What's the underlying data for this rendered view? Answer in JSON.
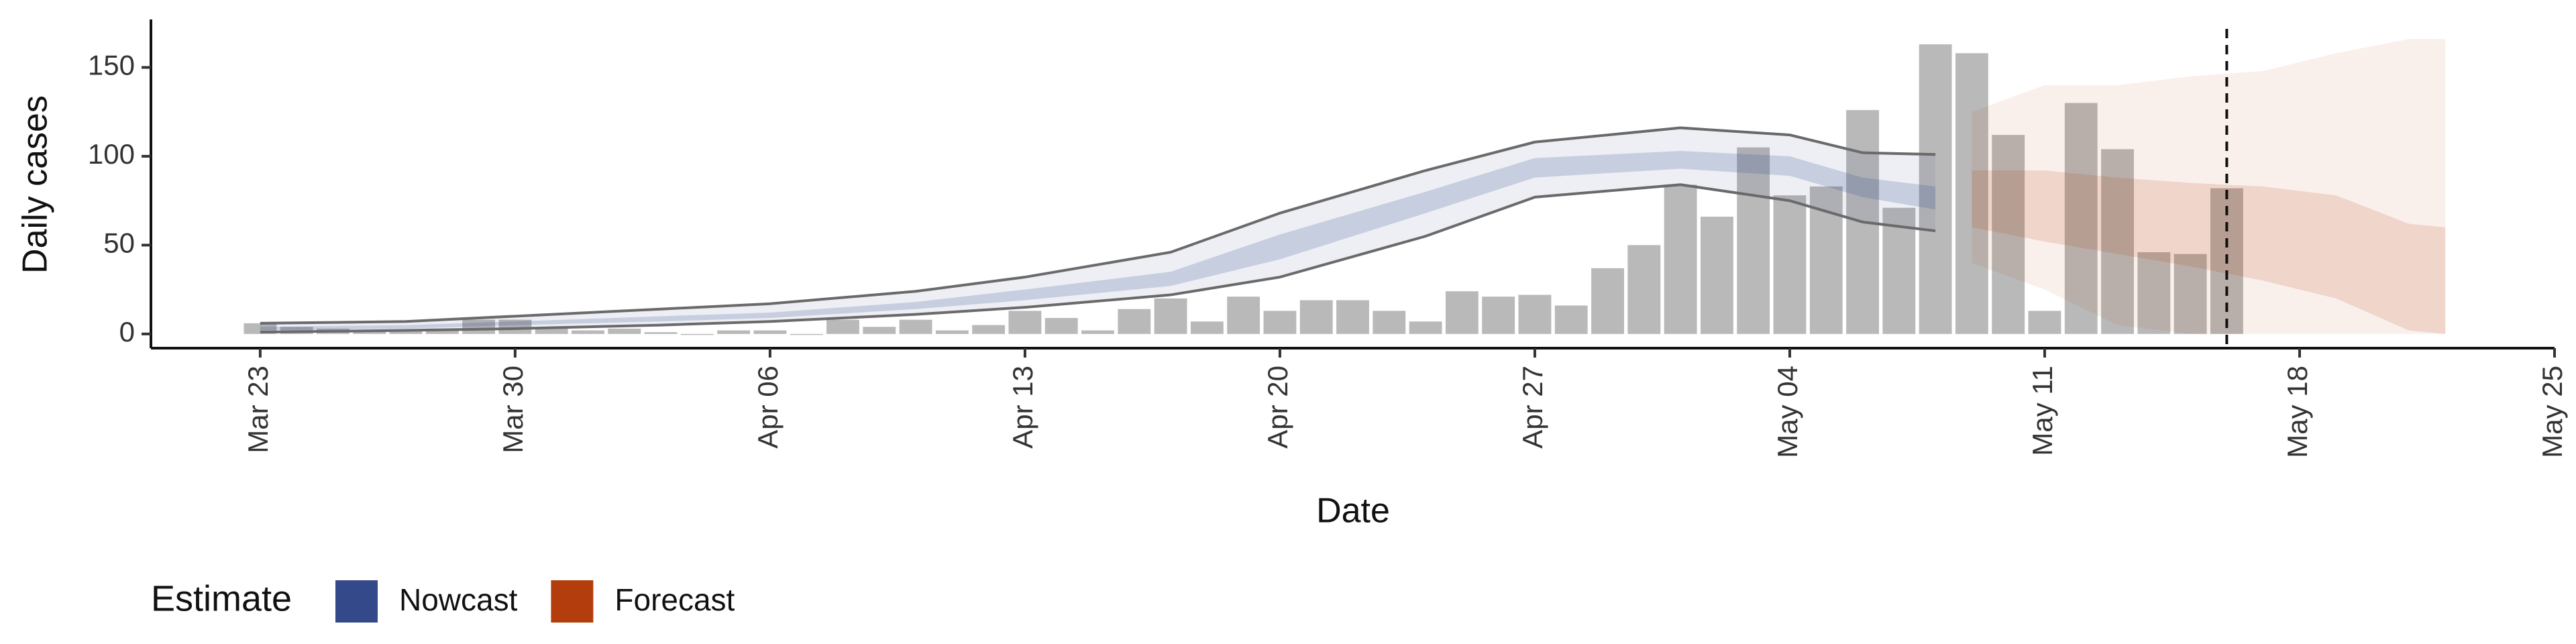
{
  "chart_data": {
    "type": "bar",
    "x_label": "Date",
    "y_label": "Daily cases",
    "legend_title": "Estimate",
    "xlim": [
      "Mar 20",
      "May 25"
    ],
    "xticks": [
      "Mar 23",
      "Mar 30",
      "Apr 06",
      "Apr 13",
      "Apr 20",
      "Apr 27",
      "May 04",
      "May 11",
      "May 18",
      "May 25"
    ],
    "ylim": [
      -8,
      177
    ],
    "yticks": [
      0,
      50,
      100,
      150
    ],
    "vline": "May 16",
    "bars": {
      "color": "#a8a8a8",
      "x": [
        "Mar 23",
        "Mar 24",
        "Mar 25",
        "Mar 26",
        "Mar 27",
        "Mar 28",
        "Mar 29",
        "Mar 30",
        "Mar 31",
        "Apr 1",
        "Apr 2",
        "Apr 3",
        "Apr 4",
        "Apr 5",
        "Apr 6",
        "Apr 7",
        "Apr 8",
        "Apr 9",
        "Apr 10",
        "Apr 11",
        "Apr 12",
        "Apr 13",
        "Apr 14",
        "Apr 15",
        "Apr 16",
        "Apr 17",
        "Apr 18",
        "Apr 19",
        "Apr 20",
        "Apr 21",
        "Apr 22",
        "Apr 23",
        "Apr 24",
        "Apr 25",
        "Apr 26",
        "Apr 27",
        "Apr 28",
        "Apr 29",
        "Apr 30",
        "May 1",
        "May 2",
        "May 3",
        "May 4",
        "May 5",
        "May 6",
        "May 7",
        "May 8",
        "May 9",
        "May 10",
        "May 11",
        "May 12",
        "May 13",
        "May 14",
        "May 15",
        "May 16"
      ],
      "values": [
        6,
        4,
        3,
        2,
        2,
        3,
        8,
        8,
        3,
        2,
        3,
        1,
        0,
        2,
        2,
        0,
        8,
        4,
        8,
        2,
        5,
        13,
        9,
        2,
        14,
        20,
        7,
        21,
        13,
        19,
        19,
        13,
        7,
        24,
        21,
        22,
        16,
        37,
        50,
        84,
        66,
        105,
        78,
        83,
        126,
        71,
        163,
        158,
        112,
        13,
        130,
        104,
        46,
        45,
        82
      ]
    },
    "series": [
      {
        "name": "Nowcast",
        "color": "#34498a",
        "x": [
          "Mar 23",
          "Mar 27",
          "Mar 30",
          "Apr 3",
          "Apr 6",
          "Apr 10",
          "Apr 13",
          "Apr 17",
          "Apr 20",
          "Apr 24",
          "Apr 27",
          "May 1",
          "May 4",
          "May 6",
          "May 8"
        ],
        "upper90": [
          6,
          7,
          10,
          14,
          17,
          24,
          32,
          46,
          68,
          92,
          108,
          116,
          112,
          102,
          101
        ],
        "upper50": [
          4,
          5,
          7,
          10,
          12,
          18,
          25,
          35,
          56,
          80,
          99,
          103,
          100,
          88,
          83
        ],
        "lower50": [
          2,
          3,
          5,
          7,
          9,
          14,
          19,
          27,
          42,
          68,
          88,
          93,
          89,
          77,
          70
        ],
        "lower90": [
          1,
          2,
          3,
          5,
          7,
          11,
          15,
          22,
          32,
          55,
          77,
          84,
          75,
          63,
          58
        ]
      },
      {
        "name": "Forecast",
        "color": "#b33d0c",
        "x": [
          "May 9",
          "May 11",
          "May 13",
          "May 15",
          "May 17",
          "May 19",
          "May 21",
          "May 22"
        ],
        "upper90": [
          125,
          140,
          140,
          145,
          148,
          158,
          166,
          166
        ],
        "upper50": [
          92,
          92,
          88,
          85,
          83,
          78,
          62,
          60
        ],
        "lower50": [
          60,
          52,
          45,
          38,
          30,
          20,
          2,
          0
        ],
        "lower90": [
          40,
          25,
          5,
          0,
          0,
          0,
          0,
          0
        ]
      }
    ]
  }
}
